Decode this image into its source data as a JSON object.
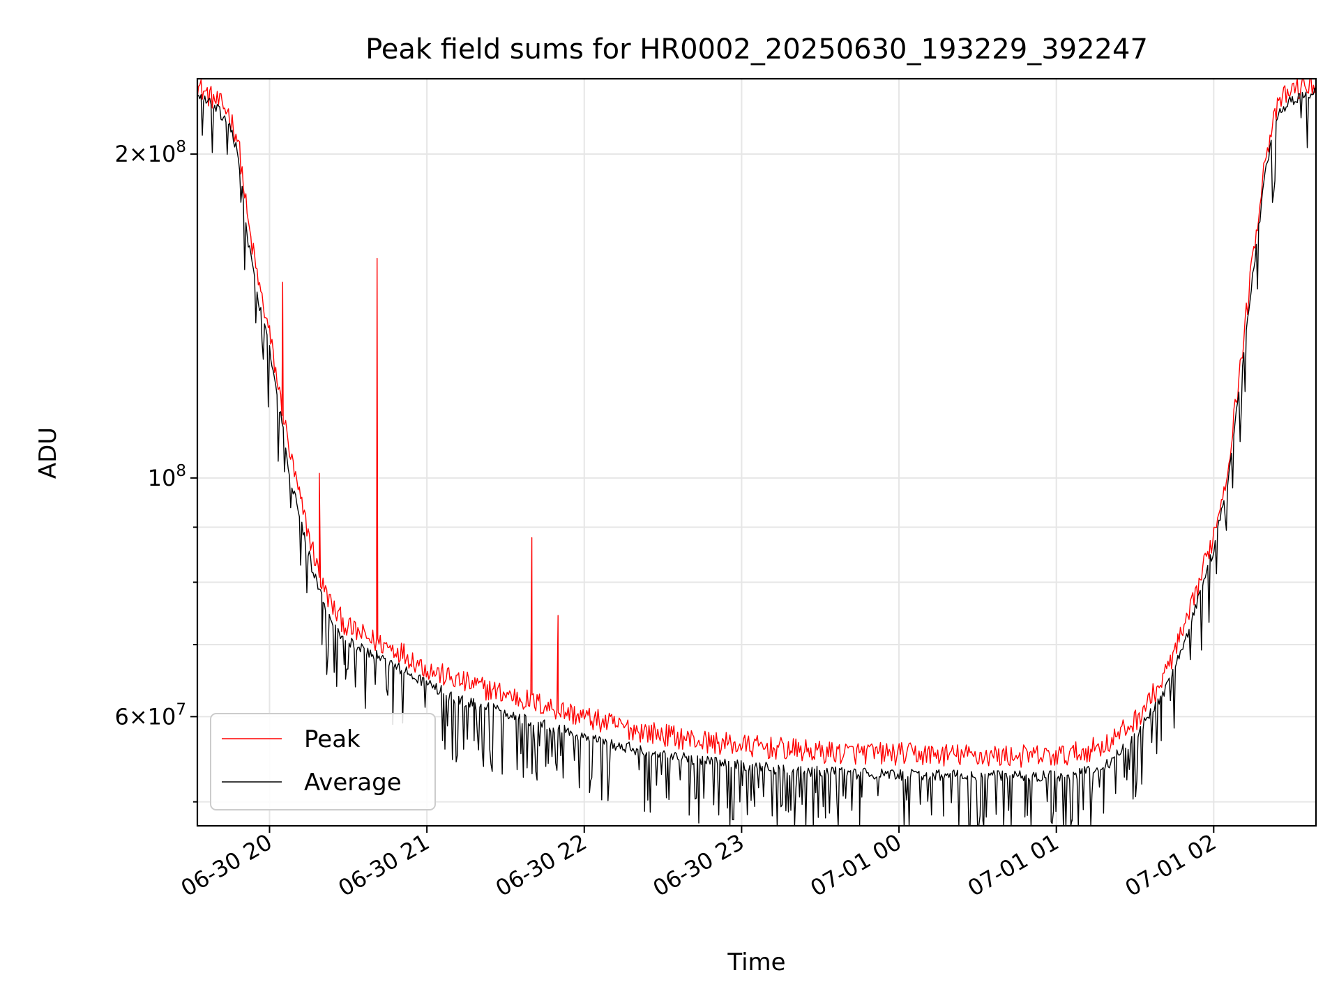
{
  "chart_data": {
    "type": "line",
    "title": "Peak field sums for HR0002_20250630_193229_392247",
    "xlabel": "Time",
    "ylabel": "ADU",
    "y_scale": "log",
    "ylim": [
      47500000,
      235000000
    ],
    "xlim": [
      "2025-06-30 19:32:29",
      "2025-07-01 02:39:00"
    ],
    "x_ticks": [
      {
        "value": "2025-06-30 20:00",
        "label": "06-30 20"
      },
      {
        "value": "2025-06-30 21:00",
        "label": "06-30 21"
      },
      {
        "value": "2025-06-30 22:00",
        "label": "06-30 22"
      },
      {
        "value": "2025-06-30 23:00",
        "label": "06-30 23"
      },
      {
        "value": "2025-07-01 00:00",
        "label": "07-01 00"
      },
      {
        "value": "2025-07-01 01:00",
        "label": "07-01 01"
      },
      {
        "value": "2025-07-01 02:00",
        "label": "07-01 02"
      }
    ],
    "y_ticks": [
      {
        "value": 200000000,
        "mant": "2",
        "exp": "8"
      },
      {
        "value": 100000000,
        "mant": "",
        "exp": "8"
      },
      {
        "value": 60000000,
        "mant": "6",
        "exp": "7"
      }
    ],
    "y_minor_ticks": [
      50000000,
      70000000,
      80000000,
      90000000
    ],
    "grid": true,
    "legend_position": "lower-left",
    "series": [
      {
        "name": "Peak",
        "color": "#ff0000",
        "points": [
          [
            "2025-06-30 19:32",
            230000000
          ],
          [
            "2025-06-30 19:36",
            226000000
          ],
          [
            "2025-06-30 19:40",
            222000000
          ],
          [
            "2025-06-30 19:44",
            218000000
          ],
          [
            "2025-06-30 19:48",
            205000000
          ],
          [
            "2025-06-30 19:52",
            170000000
          ],
          [
            "2025-06-30 19:56",
            150000000
          ],
          [
            "2025-06-30 20:00",
            135000000
          ],
          [
            "2025-06-30 20:04",
            118000000
          ],
          [
            "2025-06-30 20:08",
            104000000
          ],
          [
            "2025-06-30 20:12",
            94000000
          ],
          [
            "2025-06-30 20:16",
            86000000
          ],
          [
            "2025-06-30 20:20",
            79000000
          ],
          [
            "2025-06-30 20:25",
            74500000
          ],
          [
            "2025-06-30 20:30",
            72000000
          ],
          [
            "2025-06-30 20:40",
            70000000
          ],
          [
            "2025-06-30 20:50",
            68500000
          ],
          [
            "2025-06-30 21:00",
            66000000
          ],
          [
            "2025-06-30 21:10",
            64500000
          ],
          [
            "2025-06-30 21:20",
            63500000
          ],
          [
            "2025-06-30 21:30",
            62500000
          ],
          [
            "2025-06-30 21:45",
            61000000
          ],
          [
            "2025-06-30 22:00",
            59500000
          ],
          [
            "2025-06-30 22:15",
            58200000
          ],
          [
            "2025-06-30 22:30",
            57300000
          ],
          [
            "2025-06-30 22:45",
            56500000
          ],
          [
            "2025-06-30 23:00",
            56000000
          ],
          [
            "2025-06-30 23:30",
            55200000
          ],
          [
            "2025-07-01 00:00",
            55000000
          ],
          [
            "2025-07-01 00:30",
            54800000
          ],
          [
            "2025-07-01 01:00",
            54700000
          ],
          [
            "2025-07-01 01:10",
            55200000
          ],
          [
            "2025-07-01 01:20",
            56300000
          ],
          [
            "2025-07-01 01:30",
            59000000
          ],
          [
            "2025-07-01 01:40",
            64000000
          ],
          [
            "2025-07-01 01:50",
            73000000
          ],
          [
            "2025-07-01 02:00",
            88000000
          ],
          [
            "2025-07-01 02:05",
            100000000
          ],
          [
            "2025-07-01 02:10",
            125000000
          ],
          [
            "2025-07-01 02:15",
            160000000
          ],
          [
            "2025-07-01 02:20",
            200000000
          ],
          [
            "2025-07-01 02:25",
            222000000
          ],
          [
            "2025-07-01 02:30",
            228000000
          ],
          [
            "2025-07-01 02:39",
            231000000
          ]
        ],
        "spikes": [
          [
            "2025-06-30 20:05",
            152000000
          ],
          [
            "2025-06-30 20:19",
            101000000
          ],
          [
            "2025-06-30 20:41",
            160000000
          ],
          [
            "2025-06-30 21:40",
            88000000
          ],
          [
            "2025-06-30 21:50",
            74500000
          ]
        ]
      },
      {
        "name": "Average",
        "color": "#000000",
        "points": [
          [
            "2025-06-30 19:32",
            228000000
          ],
          [
            "2025-06-30 19:36",
            224000000
          ],
          [
            "2025-06-30 19:40",
            220000000
          ],
          [
            "2025-06-30 19:44",
            215000000
          ],
          [
            "2025-06-30 19:48",
            200000000
          ],
          [
            "2025-06-30 19:52",
            165000000
          ],
          [
            "2025-06-30 19:56",
            145000000
          ],
          [
            "2025-06-30 20:00",
            132000000
          ],
          [
            "2025-06-30 20:04",
            115000000
          ],
          [
            "2025-06-30 20:08",
            100000000
          ],
          [
            "2025-06-30 20:12",
            91000000
          ],
          [
            "2025-06-30 20:16",
            83000000
          ],
          [
            "2025-06-30 20:20",
            77000000
          ],
          [
            "2025-06-30 20:25",
            72500000
          ],
          [
            "2025-06-30 20:30",
            70500000
          ],
          [
            "2025-06-30 20:40",
            68500000
          ],
          [
            "2025-06-30 20:50",
            66500000
          ],
          [
            "2025-06-30 21:00",
            64500000
          ],
          [
            "2025-06-30 21:10",
            62500000
          ],
          [
            "2025-06-30 21:20",
            61500000
          ],
          [
            "2025-06-30 21:30",
            60500000
          ],
          [
            "2025-06-30 21:45",
            59000000
          ],
          [
            "2025-06-30 22:00",
            57500000
          ],
          [
            "2025-06-30 22:15",
            56300000
          ],
          [
            "2025-06-30 22:30",
            55300000
          ],
          [
            "2025-06-30 22:45",
            54600000
          ],
          [
            "2025-06-30 23:00",
            54000000
          ],
          [
            "2025-06-30 23:30",
            53300000
          ],
          [
            "2025-07-01 00:00",
            53000000
          ],
          [
            "2025-07-01 00:30",
            52900000
          ],
          [
            "2025-07-01 01:00",
            52800000
          ],
          [
            "2025-07-01 01:10",
            53200000
          ],
          [
            "2025-07-01 01:20",
            54300000
          ],
          [
            "2025-07-01 01:30",
            57500000
          ],
          [
            "2025-07-01 01:40",
            62500000
          ],
          [
            "2025-07-01 01:50",
            71500000
          ],
          [
            "2025-07-01 02:00",
            86000000
          ],
          [
            "2025-07-01 02:05",
            98000000
          ],
          [
            "2025-07-01 02:10",
            122000000
          ],
          [
            "2025-07-01 02:15",
            155000000
          ],
          [
            "2025-07-01 02:20",
            195000000
          ],
          [
            "2025-07-01 02:25",
            219000000
          ],
          [
            "2025-07-01 02:30",
            225000000
          ],
          [
            "2025-07-01 02:39",
            228000000
          ]
        ],
        "dips": [
          [
            "2025-06-30 20:20",
            70000000
          ],
          [
            "2025-06-30 20:29",
            65000000
          ],
          [
            "2025-06-30 20:47",
            59000000
          ],
          [
            "2025-06-30 21:18",
            57000000
          ],
          [
            "2025-06-30 21:42",
            54000000
          ],
          [
            "2025-06-30 22:02",
            51000000
          ],
          [
            "2025-06-30 22:23",
            49000000
          ],
          [
            "2025-06-30 22:40",
            48600000
          ],
          [
            "2025-06-30 23:05",
            49500000
          ],
          [
            "2025-06-30 23:32",
            48300000
          ],
          [
            "2025-06-30 23:45",
            47500000
          ],
          [
            "2025-07-01 00:17",
            48500000
          ],
          [
            "2025-07-01 00:32",
            48000000
          ],
          [
            "2025-07-01 00:48",
            48400000
          ],
          [
            "2025-07-01 00:58",
            47900000
          ],
          [
            "2025-07-01 01:06",
            48200000
          ],
          [
            "2025-07-01 01:18",
            48800000
          ],
          [
            "2025-07-01 01:40",
            57000000
          ],
          [
            "2025-07-01 01:56",
            80000000
          ]
        ]
      }
    ]
  }
}
